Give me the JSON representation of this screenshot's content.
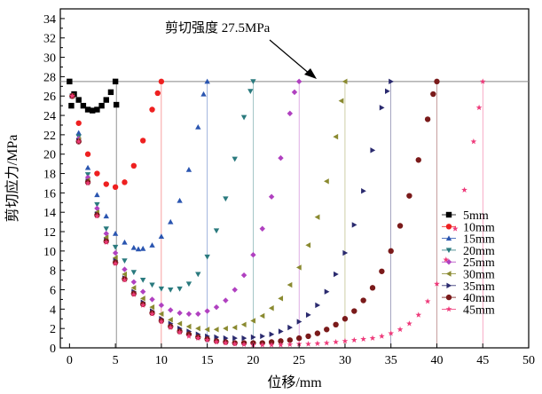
{
  "chart_data": {
    "type": "scatter",
    "title": "",
    "xlabel": "位移/mm",
    "ylabel": "剪切应力/MPa",
    "xlim": [
      -1,
      50
    ],
    "ylim": [
      0,
      35
    ],
    "xticks": [
      0,
      5,
      10,
      15,
      20,
      25,
      30,
      35,
      40,
      45,
      50
    ],
    "yticks": [
      0,
      2,
      4,
      6,
      8,
      10,
      12,
      14,
      16,
      18,
      20,
      22,
      24,
      26,
      28,
      30,
      32,
      34
    ],
    "grid": false,
    "legend_position": "bottom-right",
    "reference_line": {
      "y": 27.5
    },
    "annotation": {
      "text": "剪切强度 27.5MPa",
      "target": [
        28,
        27.5
      ]
    },
    "series": [
      {
        "name": "5mm",
        "color": "#000000",
        "marker": "square",
        "x": [
          0,
          0.5,
          1,
          1.5,
          2,
          2.5,
          3,
          3.5,
          4,
          4.5,
          5,
          0.2,
          5.1
        ],
        "y": [
          27.5,
          26.2,
          25.6,
          25,
          24.6,
          24.5,
          24.6,
          25,
          25.6,
          26.4,
          27.5,
          25,
          25.1
        ]
      },
      {
        "name": "10mm",
        "color": "#ee2020",
        "marker": "circle",
        "x": [
          0.3,
          1,
          2,
          3,
          4,
          5,
          6,
          7,
          8,
          9,
          9.6,
          10
        ],
        "y": [
          26,
          23.2,
          20,
          18,
          16.9,
          16.6,
          17.1,
          18.8,
          21.4,
          24.6,
          26.3,
          27.5
        ]
      },
      {
        "name": "15mm",
        "color": "#2a55b0",
        "marker": "triangle-up",
        "x": [
          0.3,
          1,
          2,
          3,
          4,
          5,
          6,
          7,
          7.5,
          8,
          9,
          10,
          11,
          12,
          13,
          14,
          14.6,
          15
        ],
        "y": [
          26,
          22.2,
          18.6,
          15.8,
          13.6,
          11.8,
          10.9,
          10.35,
          10.2,
          10.25,
          10.6,
          11.5,
          13,
          15.2,
          18.4,
          22.8,
          26.2,
          27.5
        ]
      },
      {
        "name": "20mm",
        "color": "#2a7a7e",
        "marker": "triangle-down",
        "x": [
          0.3,
          1,
          2,
          3,
          4,
          5,
          6,
          7,
          8,
          9,
          10,
          11,
          12,
          13,
          14,
          15,
          16,
          17,
          18,
          19,
          19.7,
          20
        ],
        "y": [
          26,
          21.8,
          17.9,
          14.8,
          12.3,
          10.4,
          9,
          7.8,
          7,
          6.5,
          6.1,
          6,
          6.1,
          6.6,
          7.6,
          9.4,
          12.1,
          15.4,
          19.5,
          23.8,
          26.5,
          27.5
        ]
      },
      {
        "name": "25mm",
        "color": "#b040c0",
        "marker": "diamond",
        "x": [
          0.3,
          1,
          2,
          3,
          4,
          5,
          6,
          7,
          8,
          9,
          10,
          11,
          12,
          13,
          14,
          15,
          16,
          17,
          18,
          19,
          20,
          21,
          22,
          23,
          24,
          24.5,
          25
        ],
        "y": [
          26,
          21.6,
          17.6,
          14.4,
          11.8,
          9.8,
          8.1,
          6.8,
          5.8,
          5,
          4.4,
          3.9,
          3.6,
          3.5,
          3.5,
          3.8,
          4.2,
          4.9,
          6,
          7.5,
          9.6,
          12.3,
          15.6,
          19.6,
          24.2,
          26.4,
          27.5
        ]
      },
      {
        "name": "30mm",
        "color": "#8a8a30",
        "marker": "triangle-left",
        "x": [
          0.3,
          1,
          2,
          3,
          4,
          5,
          6,
          7,
          8,
          9,
          10,
          11,
          12,
          13,
          14,
          15,
          16,
          17,
          18,
          19,
          20,
          21,
          22,
          23,
          24,
          25,
          26,
          27,
          28,
          29,
          29.6,
          30
        ],
        "y": [
          26,
          21.5,
          17.3,
          14,
          11.4,
          9.3,
          7.6,
          6.2,
          5.1,
          4.2,
          3.5,
          2.9,
          2.5,
          2.2,
          2,
          1.9,
          1.9,
          2,
          2.1,
          2.4,
          2.8,
          3.3,
          4.1,
          5.1,
          6.5,
          8.3,
          10.6,
          13.5,
          17.2,
          21.8,
          25.5,
          27.5
        ]
      },
      {
        "name": "35mm",
        "color": "#2a2a6e",
        "marker": "triangle-right",
        "x": [
          0.3,
          1,
          2,
          3,
          4,
          5,
          6,
          7,
          8,
          9,
          10,
          11,
          12,
          13,
          14,
          15,
          16,
          17,
          18,
          19,
          20,
          21,
          22,
          23,
          24,
          25,
          26,
          27,
          28,
          29,
          30,
          31,
          32,
          33,
          34,
          34.6,
          35
        ],
        "y": [
          26,
          21.4,
          17.2,
          13.8,
          11.1,
          9,
          7.2,
          5.8,
          4.7,
          3.8,
          3,
          2.5,
          2,
          1.7,
          1.4,
          1.2,
          1.1,
          1,
          1,
          1,
          1.1,
          1.2,
          1.4,
          1.7,
          2.1,
          2.7,
          3.4,
          4.4,
          5.8,
          7.6,
          9.8,
          12.7,
          16.2,
          20.4,
          24.8,
          26.5,
          27.5
        ]
      },
      {
        "name": "40mm",
        "color": "#7a1a1a",
        "marker": "circle",
        "x": [
          0.3,
          1,
          2,
          3,
          4,
          5,
          6,
          7,
          8,
          9,
          10,
          11,
          12,
          13,
          14,
          15,
          16,
          17,
          18,
          19,
          20,
          21,
          22,
          23,
          24,
          25,
          26,
          27,
          28,
          29,
          30,
          31,
          32,
          33,
          34,
          35,
          36,
          37,
          38,
          39,
          39.6,
          40
        ],
        "y": [
          26,
          21.3,
          17.1,
          13.7,
          11,
          8.8,
          7.1,
          5.6,
          4.5,
          3.6,
          2.8,
          2.2,
          1.7,
          1.4,
          1.1,
          0.9,
          0.7,
          0.6,
          0.5,
          0.5,
          0.5,
          0.5,
          0.6,
          0.7,
          0.8,
          1,
          1.2,
          1.5,
          1.9,
          2.4,
          3,
          3.8,
          4.9,
          6.2,
          7.9,
          10,
          12.6,
          15.7,
          19.4,
          23.6,
          26.2,
          27.5
        ]
      },
      {
        "name": "45mm",
        "color": "#ee3a7a",
        "marker": "star",
        "x": [
          0.3,
          1,
          2,
          3,
          4,
          5,
          6,
          7,
          8,
          9,
          10,
          11,
          12,
          13,
          14,
          15,
          16,
          17,
          18,
          19,
          20,
          21,
          22,
          23,
          24,
          25,
          26,
          27,
          28,
          29,
          30,
          31,
          32,
          33,
          34,
          35,
          36,
          37,
          38,
          39,
          40,
          41,
          42,
          43,
          44,
          44.6,
          45
        ],
        "y": [
          26,
          21.3,
          17,
          13.6,
          10.9,
          8.7,
          7,
          5.5,
          4.4,
          3.5,
          2.7,
          2.1,
          1.6,
          1.2,
          1,
          0.8,
          0.6,
          0.5,
          0.4,
          0.35,
          0.3,
          0.3,
          0.3,
          0.3,
          0.35,
          0.4,
          0.4,
          0.45,
          0.5,
          0.6,
          0.7,
          0.8,
          0.9,
          1,
          1.2,
          1.5,
          1.9,
          2.5,
          3.4,
          4.8,
          6.6,
          9.1,
          12.3,
          16.3,
          21.3,
          24.8,
          27.5
        ]
      }
    ]
  }
}
